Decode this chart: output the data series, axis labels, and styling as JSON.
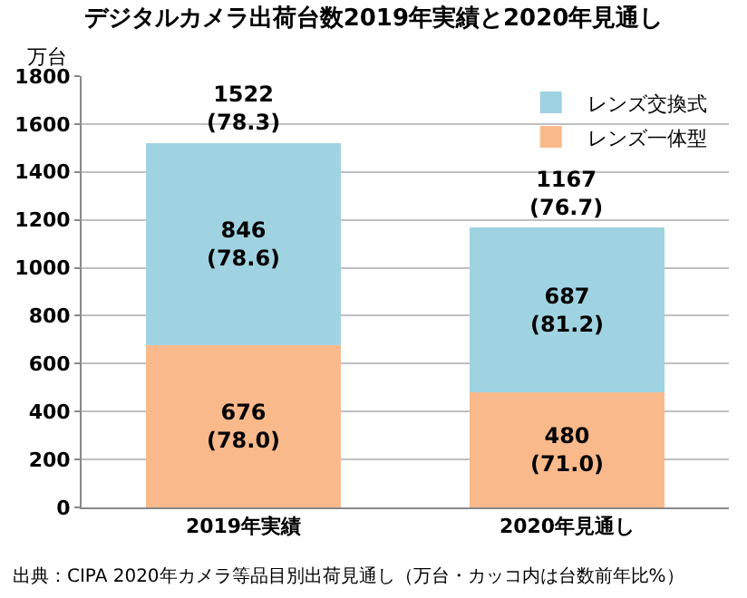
{
  "chart_data": {
    "type": "bar",
    "title": "デジタルカメラ出荷台数2019年実績と2020年見通し",
    "ylabel": "万台",
    "categories": [
      "2019年実績",
      "2020年見通し"
    ],
    "stacked": true,
    "series": [
      {
        "name": "レンズ一体型",
        "color": "#fab98b",
        "values": [
          676,
          480
        ],
        "value_labels": [
          "676\n(78.0)",
          "480\n(71.0)"
        ]
      },
      {
        "name": "レンズ交換式",
        "color": "#9fd3e2",
        "values": [
          846,
          687
        ],
        "value_labels": [
          "846\n(78.6)",
          "687\n(81.2)"
        ]
      }
    ],
    "totals": [
      "1522\n(78.3)",
      "1167\n(76.7)"
    ],
    "ylim": [
      0,
      1800
    ],
    "yticks": [
      0,
      200,
      400,
      600,
      800,
      1000,
      1200,
      1400,
      1600,
      1800
    ],
    "grid": "y",
    "legend": "top right",
    "annotations": [
      "出典：CIPA 2020年カメラ等品目別出荷見通し（万台・カッコ内は台数前年比%）"
    ]
  }
}
